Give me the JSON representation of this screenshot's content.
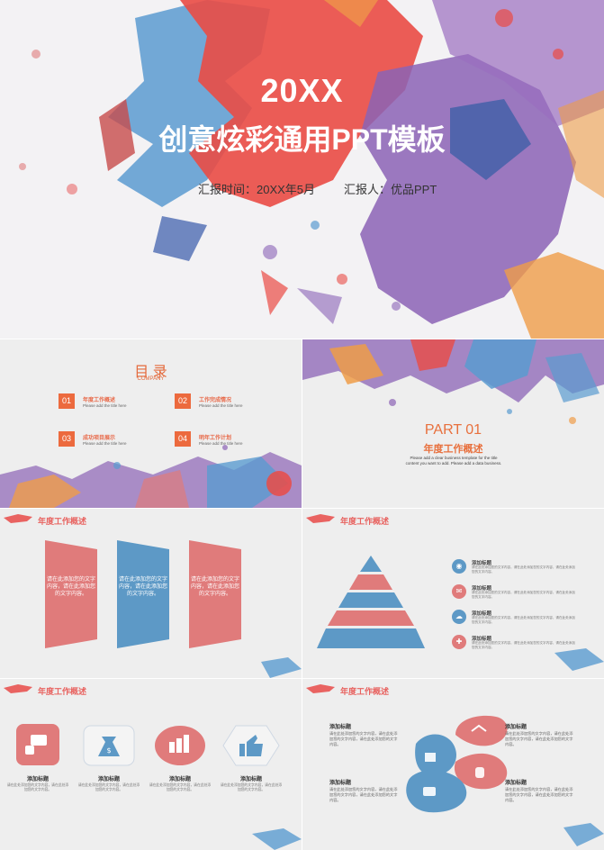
{
  "cover": {
    "year": "20XX",
    "title": "创意炫彩通用PPT模板",
    "report_time": "汇报时间：20XX年5月",
    "reporter": "汇报人：优品PPT"
  },
  "toc": {
    "title": "目 录",
    "subtitle": "COMPANY",
    "items": [
      {
        "num": "01",
        "label": "年度工作概述",
        "desc": "Please add the title here"
      },
      {
        "num": "02",
        "label": "工作完成情况",
        "desc": "Please add the title here"
      },
      {
        "num": "03",
        "label": "成功项目展示",
        "desc": "Please add the title here"
      },
      {
        "num": "04",
        "label": "明年工作计划",
        "desc": "Please add the title here"
      }
    ]
  },
  "part": {
    "number": "PART 01",
    "title": "年度工作概述",
    "desc": "Please add a clear business template for the title content you want to add. Please add a data business."
  },
  "slide_header": "年度工作概述",
  "blocks": {
    "items": [
      {
        "text": "请在此添加您的文字内容，请在此添加您的文字内容。",
        "color": "#e07b7b"
      },
      {
        "text": "请在此添加您的文字内容，请在此添加您的文字内容。",
        "color": "#5d99c6"
      },
      {
        "text": "请在此添加您的文字内容，请在此添加您的文字内容。",
        "color": "#e07b7b"
      }
    ]
  },
  "pyramid": {
    "items": [
      {
        "title": "添加标题",
        "desc": "请在此处添加您的文字内容，请在此处添加您的文字内容，请在此处添加您的文字内容。",
        "color": "#5d99c6",
        "icon": "location-icon"
      },
      {
        "title": "添加标题",
        "desc": "请在此处添加您的文字内容，请在此处添加您的文字内容，请在此处添加您的文字内容。",
        "color": "#e07b7b",
        "icon": "mail-icon"
      },
      {
        "title": "添加标题",
        "desc": "请在此处添加您的文字内容，请在此处添加您的文字内容，请在此处添加您的文字内容。",
        "color": "#5d99c6",
        "icon": "chat-icon"
      },
      {
        "title": "添加标题",
        "desc": "请在此处添加您的文字内容，请在此处添加您的文字内容，请在此处添加您的文字内容。",
        "color": "#e07b7b",
        "icon": "gift-icon"
      }
    ]
  },
  "icons_row": {
    "items": [
      {
        "title": "添加标题",
        "desc": "请在此处添加您的文字内容，请在此处添加您的文字内容。",
        "icon": "chat-icon"
      },
      {
        "title": "添加标题",
        "desc": "请在此处添加您的文字内容，请在此处添加您的文字内容。",
        "icon": "money-bag-icon"
      },
      {
        "title": "添加标题",
        "desc": "请在此处添加您的文字内容，请在此处添加您的文字内容。",
        "icon": "coins-icon"
      },
      {
        "title": "添加标题",
        "desc": "请在此处添加您的文字内容，请在此处添加您的文字内容。",
        "icon": "thumbs-up-icon"
      }
    ]
  },
  "drops": {
    "items": [
      {
        "title": "添加标题",
        "desc": "请在此处添加您的文字内容，请在此处添加您的文字内容，请在此处添加您的文字内容。"
      },
      {
        "title": "添加标题",
        "desc": "请在此处添加您的文字内容，请在此处添加您的文字内容，请在此处添加您的文字内容。"
      },
      {
        "title": "添加标题",
        "desc": "请在此处添加您的文字内容，请在此处添加您的文字内容，请在此处添加您的文字内容。"
      },
      {
        "title": "添加标题",
        "desc": "请在此处添加您的文字内容，请在此处添加您的文字内容，请在此处添加您的文字内容。"
      }
    ]
  },
  "colors": {
    "red": "#e84a48",
    "blue": "#4d8ec4",
    "purple": "#8c64b4",
    "orange": "#ec9a4a",
    "pink": "#e07b7b"
  }
}
